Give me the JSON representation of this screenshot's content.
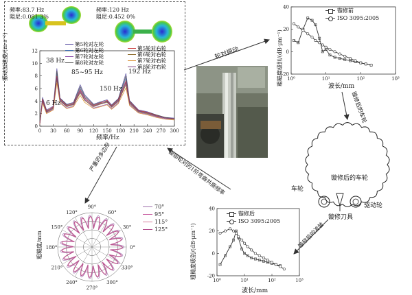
{
  "top_left": {
    "mode1": {
      "freq": "频率:83.7 Hz",
      "damp": "阻尼:0.081 3%"
    },
    "mode2": {
      "freq": "频率:120 Hz",
      "damp": "阻尼:0.452 0%"
    },
    "ylabel": "振动加速度/(m·s⁻²)",
    "xlabel": "频率/Hz",
    "annotations": [
      "38 Hz",
      "85~95 Hz",
      "150 Hz",
      "192 Hz",
      "6 Hz"
    ],
    "legend_left": [
      "第5轮对左轮",
      "第6轮对左轮",
      "第7轮对左轮",
      "第8轮对左轮"
    ],
    "legend_right": [
      "第5轮对右轮",
      "第6轮对右轮",
      "第7轮对右轮",
      "第8轮对右轮"
    ]
  },
  "arrows": {
    "wheelset_vibration": "轮对振动",
    "after_turning_wheel": "镟修后的车轮",
    "after_turning_wave": "镟修后的波皱",
    "bending_resonance": "镟丽轮对的1阶弯曲共振频率",
    "severe_polygon": "严重的多边形"
  },
  "wheel_diagram": {
    "after_label": "镟修后的车轮",
    "wheel": "车轮",
    "drive_wheel": "驱动轮",
    "tool": "镟修刀具"
  },
  "top_right": {
    "ylabel": "粗糙度级别/(dB·μm⁻¹)",
    "xlabel": "波长/mm",
    "legend": [
      "镟修前",
      "ISO 3095:2005"
    ]
  },
  "bottom_right": {
    "ylabel": "粗糙度级别/(dB·μm⁻¹)",
    "xlabel": "波长/mm",
    "legend": [
      "镟修后",
      "ISO 3095:2005"
    ]
  },
  "polar": {
    "ylabel": "粗糙度/mm",
    "legend": [
      "70°",
      "95°",
      "115°",
      "125°"
    ]
  },
  "chart_data": [
    {
      "type": "line",
      "id": "vibration-spectrum",
      "xlabel": "频率/Hz",
      "ylabel": "振动加速度/(m·s⁻²)",
      "x_ticks": [
        "0",
        "30",
        "60",
        "90",
        "120",
        "150",
        "180",
        "210",
        "240",
        "270",
        "300"
      ],
      "y_ticks": [
        "0",
        "2",
        "4",
        "6",
        "8",
        "10",
        "12"
      ],
      "xlim": [
        0,
        300
      ],
      "ylim": [
        0,
        12
      ],
      "series": [
        {
          "name": "第5轮对左轮",
          "color": "#5a4fa3",
          "x": [
            0,
            6,
            15,
            30,
            38,
            45,
            60,
            75,
            90,
            100,
            120,
            135,
            150,
            160,
            175,
            192,
            200,
            220,
            240,
            260,
            280,
            300
          ],
          "y": [
            0.5,
            4.6,
            2.6,
            3.2,
            9.2,
            4.5,
            3.5,
            3.8,
            6.6,
            5.0,
            3.5,
            3.9,
            4.2,
            3.4,
            4.4,
            8.4,
            4.1,
            2.6,
            2.3,
            1.8,
            1.4,
            1.3
          ]
        },
        {
          "name": "第6轮对左轮",
          "color": "#3e6fb5",
          "x": [
            0,
            6,
            15,
            30,
            38,
            45,
            60,
            75,
            90,
            100,
            120,
            135,
            150,
            160,
            175,
            192,
            200,
            220,
            240,
            260,
            280,
            300
          ],
          "y": [
            0.4,
            4.2,
            2.3,
            2.9,
            8.4,
            4.2,
            3.2,
            3.5,
            6.0,
            4.6,
            3.2,
            3.6,
            3.9,
            3.1,
            4.1,
            7.6,
            3.8,
            2.4,
            2.1,
            1.7,
            1.3,
            1.2
          ]
        },
        {
          "name": "第7轮对左轮",
          "color": "#8a4aa8",
          "x": [
            0,
            6,
            15,
            30,
            38,
            45,
            60,
            75,
            90,
            100,
            120,
            135,
            150,
            160,
            175,
            192,
            200,
            220,
            240,
            260,
            280,
            300
          ],
          "y": [
            0.3,
            3.9,
            2.1,
            2.7,
            7.7,
            3.8,
            2.9,
            3.2,
            5.5,
            4.2,
            2.9,
            3.2,
            3.5,
            2.8,
            3.7,
            7.0,
            3.4,
            2.2,
            1.9,
            1.5,
            1.2,
            1.1
          ]
        },
        {
          "name": "第8轮对左轮",
          "color": "#4a4a4a",
          "x": [
            0,
            6,
            15,
            30,
            38,
            45,
            60,
            75,
            90,
            100,
            120,
            135,
            150,
            160,
            175,
            192,
            200,
            220,
            240,
            260,
            280,
            300
          ],
          "y": [
            0.4,
            4.4,
            2.5,
            3.0,
            8.8,
            4.4,
            3.4,
            3.7,
            6.3,
            4.8,
            3.4,
            3.8,
            4.0,
            3.3,
            4.3,
            8.0,
            4.0,
            2.5,
            2.2,
            1.8,
            1.4,
            1.2
          ]
        },
        {
          "name": "第5轮对右轮",
          "color": "#c83a3a",
          "x": [
            0,
            6,
            15,
            30,
            38,
            45,
            60,
            75,
            90,
            100,
            120,
            135,
            150,
            160,
            175,
            192,
            200,
            220,
            240,
            260,
            280,
            300
          ],
          "y": [
            0.5,
            4.3,
            2.4,
            3.1,
            8.0,
            4.3,
            3.3,
            3.6,
            5.8,
            4.5,
            3.3,
            3.7,
            4.1,
            3.2,
            4.2,
            7.2,
            3.9,
            2.5,
            2.2,
            1.7,
            1.3,
            1.2
          ]
        },
        {
          "name": "第6轮对右轮",
          "color": "#8c6a2a",
          "x": [
            0,
            6,
            15,
            30,
            38,
            45,
            60,
            75,
            90,
            100,
            120,
            135,
            150,
            160,
            175,
            192,
            200,
            220,
            240,
            260,
            280,
            300
          ],
          "y": [
            0.4,
            4.0,
            2.2,
            2.8,
            7.4,
            4.0,
            3.1,
            3.4,
            5.3,
            4.1,
            3.1,
            3.5,
            3.8,
            3.0,
            3.9,
            6.6,
            3.6,
            2.3,
            2.0,
            1.6,
            1.3,
            1.1
          ]
        },
        {
          "name": "第7轮对右轮",
          "color": "#d88a2a",
          "x": [
            0,
            6,
            15,
            30,
            38,
            45,
            60,
            75,
            90,
            100,
            120,
            135,
            150,
            160,
            175,
            192,
            200,
            220,
            240,
            260,
            280,
            300
          ],
          "y": [
            0.3,
            3.7,
            2.0,
            2.6,
            6.9,
            3.7,
            2.8,
            3.1,
            4.9,
            3.8,
            2.8,
            3.1,
            3.4,
            2.7,
            3.6,
            6.1,
            3.3,
            2.1,
            1.8,
            1.4,
            1.1,
            1.0
          ]
        },
        {
          "name": "第8轮对右轮",
          "color": "#7a3a7a",
          "x": [
            0,
            6,
            15,
            30,
            38,
            45,
            60,
            75,
            90,
            100,
            120,
            135,
            150,
            160,
            175,
            192,
            200,
            220,
            240,
            260,
            280,
            300
          ],
          "y": [
            0.4,
            4.1,
            2.3,
            2.9,
            7.8,
            4.1,
            3.2,
            3.5,
            5.6,
            4.3,
            3.2,
            3.6,
            3.9,
            3.1,
            4.0,
            6.9,
            3.7,
            2.4,
            2.1,
            1.6,
            1.3,
            1.2
          ]
        }
      ]
    },
    {
      "type": "line",
      "id": "roughness-before",
      "xlabel": "波长/mm",
      "ylabel": "粗糙度级别/(dB·μm⁻¹)",
      "x_ticks": [
        "10⁰",
        "10¹",
        "10²",
        "10³"
      ],
      "y_ticks": [
        "-20",
        "0",
        "20",
        "40"
      ],
      "xscale": "log",
      "xlim": [
        1,
        1000
      ],
      "ylim": [
        -20,
        40
      ],
      "series": [
        {
          "name": "镟修前",
          "color": "#333333",
          "x": [
            1.2,
            1.6,
            2.2,
            3,
            4,
            5,
            6.5,
            8,
            10,
            13,
            18,
            25,
            35,
            50,
            70,
            100,
            140,
            200
          ],
          "y": [
            10,
            8,
            20,
            30,
            28,
            24,
            12,
            0,
            2,
            -3,
            -5,
            -6,
            -7,
            -8,
            -9,
            -10,
            -11,
            -12
          ]
        },
        {
          "name": "ISO 3095:2005",
          "color": "#333333",
          "x": [
            1.2,
            1.6,
            2.2,
            3,
            4,
            5,
            6.5,
            8,
            10,
            13,
            18,
            25,
            35,
            50,
            70,
            100,
            140,
            200
          ],
          "y": [
            25,
            22,
            19,
            16,
            13,
            10,
            8,
            6,
            4,
            2,
            0,
            -2,
            -4,
            -6,
            -8,
            -10,
            -11,
            -12
          ]
        }
      ]
    },
    {
      "type": "line",
      "id": "roughness-after",
      "xlabel": "波长/mm",
      "ylabel": "粗糙度级别/(dB·μm⁻¹)",
      "x_ticks": [
        "10⁰",
        "10¹",
        "10²",
        "10³"
      ],
      "y_ticks": [
        "-20",
        "0",
        "20",
        "40"
      ],
      "xscale": "log",
      "xlim": [
        1,
        1000
      ],
      "ylim": [
        -20,
        40
      ],
      "series": [
        {
          "name": "镟修后",
          "color": "#333333",
          "x": [
            1.3,
            2,
            3,
            4,
            5,
            6,
            8,
            10,
            13,
            18,
            25,
            35,
            50,
            70,
            100,
            140,
            200
          ],
          "y": [
            -10,
            -2,
            6,
            12,
            20,
            14,
            4,
            0,
            -2,
            -4,
            -5,
            -6,
            -7,
            -8,
            -9,
            -10,
            -11
          ]
        },
        {
          "name": "ISO 3095:2005",
          "color": "#333333",
          "x": [
            1.3,
            2,
            3,
            4,
            5,
            6,
            8,
            10,
            13,
            18,
            25,
            35,
            50,
            70,
            100,
            140,
            200,
            280
          ],
          "y": [
            18,
            20,
            22,
            20,
            18,
            15,
            12,
            9,
            6,
            3,
            0,
            -2,
            -4,
            -6,
            -8,
            -10,
            -12,
            -14
          ]
        }
      ]
    },
    {
      "type": "line",
      "id": "polar-roughness",
      "polar": true,
      "ylabel": "粗糙度/mm",
      "angle_ticks": [
        "0°",
        "30°",
        "60°",
        "90°",
        "120°",
        "150°",
        "180°",
        "210°",
        "240°",
        "270°",
        "300°",
        "330°"
      ],
      "series": [
        {
          "name": "70°",
          "color": "#9a6aa8",
          "lobes": 23,
          "base": 0.55,
          "amp": 0.38
        },
        {
          "name": "95°",
          "color": "#c85aa0",
          "lobes": 23,
          "base": 0.53,
          "amp": 0.36
        },
        {
          "name": "115°",
          "color": "#d77a9a",
          "lobes": 23,
          "base": 0.54,
          "amp": 0.34
        },
        {
          "name": "125°",
          "color": "#b04a8a",
          "lobes": 23,
          "base": 0.52,
          "amp": 0.37
        }
      ]
    }
  ]
}
